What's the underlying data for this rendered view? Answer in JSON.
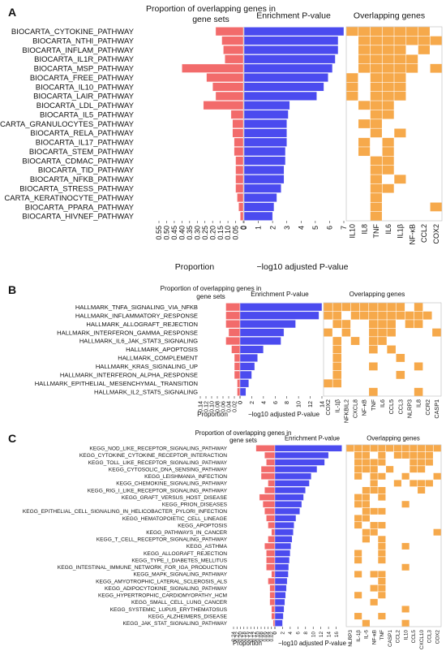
{
  "colors": {
    "proportion": "#f26b6b",
    "pvalue": "#4b4bef",
    "overlap": "#f6a94b"
  },
  "chart_data": [
    {
      "panel": "A",
      "type": "bar",
      "title_prop": "Proportion of overlapping genes in gene sets",
      "title_p": "Enrichment P-value",
      "title_genes": "Overlapping genes",
      "xlabel_prop": "Proportion",
      "xlabel_p": "−log10 adjusted P-value",
      "prop_ticks": [
        "0.55",
        "0.50",
        "0.45",
        "0.40",
        "0.35",
        "0.30",
        "0.25",
        "0.20",
        "0.15",
        "0.10",
        "0.05",
        "0"
      ],
      "prop_max": 0.55,
      "p_ticks": [
        "0",
        "1",
        "2",
        "3",
        "4",
        "5",
        "6",
        "7"
      ],
      "p_max": 7,
      "categories": [
        "BIOCARTA_CYTOKINE_PATHWAY",
        "BIOCARTA_NTHI_PATHWAY",
        "BIOCARTA_INFLAM_PATHWAY",
        "BIOCARTA_IL1R_PATHWAY",
        "BIOCARTA_MSP_PATHWAY",
        "BIOCARTA_FREE_PATHWAY",
        "BIOCARTA_IL10_PATHWAY",
        "BIOCARTA_LAIR_PATHWAY",
        "BIOCARTA_LDL_PATHWAY",
        "BIOCARTA_IL5_PATHWAY",
        "CARTA_GRANULOCYTES_PATHWAY",
        "BIOCARTA_RELA_PATHWAY",
        "BIOCARTA_IL17_PATHWAY",
        "BIOCARTA_STEM_PATHWAY",
        "BIOCARTA_CDMAC_PATHWAY",
        "BIOCARTA_TID_PATHWAY",
        "BIOCARTA_NFKB_PATHWAY",
        "BIOCARTA_STRESS_PATHWAY",
        "CARTA_KERATINOCYTE_PATHWAY",
        "BIOCARTA_PPARA_PATHWAY",
        "BIOCARTA_HIVNEF_PATHWAY"
      ],
      "proportion": [
        0.18,
        0.14,
        0.13,
        0.12,
        0.4,
        0.24,
        0.2,
        0.18,
        0.26,
        0.08,
        0.07,
        0.07,
        0.06,
        0.06,
        0.05,
        0.05,
        0.05,
        0.05,
        0.04,
        0.03,
        0.02
      ],
      "pvalue": [
        7.0,
        6.6,
        6.6,
        6.4,
        6.2,
        5.9,
        5.6,
        5.1,
        3.2,
        3.1,
        3.0,
        3.0,
        3.0,
        2.9,
        2.9,
        2.8,
        2.8,
        2.6,
        2.3,
        2.1,
        2.0
      ],
      "genes": [
        "IL10",
        "IL8",
        "TNF",
        "IL6",
        "IL1β",
        "NF-κB",
        "CCL2",
        "COX2"
      ],
      "overlap": [
        [
          1,
          1,
          1,
          1,
          1,
          1,
          1,
          0
        ],
        [
          0,
          1,
          1,
          1,
          1,
          1,
          1,
          1
        ],
        [
          0,
          1,
          1,
          1,
          1,
          0,
          1,
          0
        ],
        [
          0,
          1,
          1,
          1,
          1,
          1,
          0,
          0
        ],
        [
          0,
          1,
          1,
          1,
          1,
          1,
          0,
          1
        ],
        [
          1,
          0,
          1,
          1,
          1,
          0,
          0,
          0
        ],
        [
          1,
          0,
          1,
          1,
          1,
          0,
          0,
          0
        ],
        [
          1,
          0,
          1,
          1,
          1,
          0,
          0,
          0
        ],
        [
          0,
          1,
          1,
          1,
          0,
          0,
          0,
          0
        ],
        [
          0,
          0,
          1,
          1,
          0,
          0,
          0,
          0
        ],
        [
          0,
          1,
          1,
          0,
          0,
          0,
          0,
          0
        ],
        [
          0,
          0,
          1,
          0,
          1,
          0,
          0,
          0
        ],
        [
          0,
          1,
          0,
          1,
          0,
          0,
          0,
          0
        ],
        [
          0,
          1,
          0,
          1,
          0,
          0,
          0,
          0
        ],
        [
          0,
          0,
          1,
          1,
          0,
          0,
          0,
          0
        ],
        [
          0,
          0,
          1,
          1,
          0,
          0,
          0,
          0
        ],
        [
          0,
          0,
          1,
          0,
          1,
          0,
          0,
          0
        ],
        [
          0,
          0,
          1,
          1,
          0,
          0,
          0,
          0
        ],
        [
          0,
          0,
          1,
          0,
          0,
          0,
          0,
          0
        ],
        [
          0,
          0,
          1,
          0,
          0,
          0,
          0,
          1
        ],
        [
          0,
          0,
          1,
          0,
          0,
          0,
          0,
          0
        ]
      ]
    },
    {
      "panel": "B",
      "type": "bar",
      "title_prop": "Proportion of overlapping genes in gene sets",
      "title_p": "Enrichment P-value",
      "title_genes": "Overlapping genes",
      "xlabel_prop": "Proportion",
      "xlabel_p": "−log10 adjusted P-value",
      "prop_ticks": [
        "0.14",
        "0.12",
        "0.10",
        "0.08",
        "0.06",
        "0.04",
        "0.02",
        "0"
      ],
      "prop_max": 0.14,
      "p_ticks": [
        "0",
        "2",
        "4",
        "6",
        "8",
        "10",
        "12",
        "14"
      ],
      "p_max": 14,
      "categories": [
        "HALLMARK_TNFA_SIGNALING_VIA_NFKB",
        "HALLMARK_INFLAMMATORY_RESPONSE",
        "HALLMARK_ALLOGRAFT_REJECTION",
        "HALLMARK_INTERFERON_GAMMA_RESPONSE",
        "HALLMARK_IL6_JAK_STAT3_SIGNALING",
        "HALLMARK_APOPTOSIS",
        "HALLMARK_COMPLEMENT",
        "HALLMARK_KRAS_SIGNALING_UP",
        "HALLMARK_INTERFERON_ALPHA_RESPONSE",
        "HALLMARK_EPITHELIAL_MESENCHYMAL_TRANSITION",
        "HALLMARK_IL2_STAT5_SIGNALING"
      ],
      "proportion": [
        0.05,
        0.05,
        0.05,
        0.04,
        0.05,
        0.03,
        0.02,
        0.02,
        0.02,
        0.01,
        0.01
      ],
      "pvalue": [
        14.0,
        13.5,
        9.5,
        7.5,
        7.0,
        4.0,
        3.0,
        2.5,
        2.0,
        1.5,
        1.0
      ],
      "genes": [
        "COX2",
        "IL-1β",
        "NFKBIL2",
        "CXCL8",
        "NF-κB",
        "TNF",
        "IL6",
        "CCL5",
        "CCL3",
        "NLRP3",
        "IL8",
        "CCR2",
        "CASP1"
      ],
      "overlap": [
        [
          1,
          1,
          1,
          1,
          1,
          1,
          1,
          1,
          1,
          0,
          1,
          0,
          0
        ],
        [
          1,
          1,
          0,
          1,
          1,
          1,
          1,
          1,
          1,
          1,
          1,
          1,
          0
        ],
        [
          0,
          1,
          1,
          0,
          0,
          1,
          1,
          1,
          0,
          1,
          1,
          0,
          0
        ],
        [
          1,
          0,
          1,
          0,
          0,
          1,
          1,
          1,
          0,
          0,
          0,
          0,
          1
        ],
        [
          0,
          1,
          0,
          1,
          0,
          1,
          1,
          0,
          0,
          0,
          0,
          0,
          0
        ],
        [
          0,
          1,
          0,
          0,
          0,
          1,
          0,
          1,
          0,
          0,
          0,
          0,
          0
        ],
        [
          0,
          1,
          0,
          0,
          0,
          0,
          0,
          0,
          1,
          0,
          0,
          0,
          0
        ],
        [
          0,
          1,
          0,
          0,
          0,
          1,
          0,
          0,
          0,
          0,
          1,
          0,
          0
        ],
        [
          0,
          1,
          0,
          0,
          0,
          0,
          0,
          0,
          1,
          0,
          0,
          0,
          0
        ],
        [
          1,
          1,
          0,
          0,
          0,
          0,
          0,
          0,
          0,
          0,
          0,
          0,
          0
        ],
        [
          0,
          0,
          0,
          0,
          0,
          1,
          0,
          0,
          0,
          0,
          1,
          0,
          0
        ]
      ]
    },
    {
      "panel": "C",
      "type": "bar",
      "title_prop": "Proportion of overlapping genes in gene sets",
      "title_p": "Enrichment P-value",
      "title_genes": "Overlapping genes",
      "xlabel_prop": "Proportion",
      "xlabel_p": "−log10 adjusted P-value",
      "prop_ticks": [
        "0.24",
        "0.22",
        "0.20",
        "0.18",
        "0.16",
        "0.14",
        "0.12",
        "0.10",
        "0.08",
        "0.06",
        "0.04",
        "0.02",
        "0"
      ],
      "prop_max": 0.24,
      "p_ticks": [
        "0",
        "2",
        "4",
        "6",
        "8",
        "10",
        "12",
        "14",
        "16"
      ],
      "p_max": 18,
      "categories": [
        "KEGG_NOD_LIKE_RECEPTOR_SIGNALING_PATHWAY",
        "KEGG_CYTOKINE_CYTOKINE_RECEPTOR_INTERACTION",
        "KEGG_TOLL_LIKE_RECEPTOR_SIGNALING_PATHWAY",
        "KEGG_CYTOSOLIC_DNA_SENSING_PATHWAY",
        "KEGG_LEISHMANIA_INFECTION",
        "KEGG_CHEMOKINE_SIGNALING_PATHWAY",
        "KEGG_RIG_I_LIKE_RECEPTOR_SIGNALING_PATHWAY",
        "KEGG_GRAFT_VERSUS_HOST_DISEASE",
        "KEGG_PRION_DISEASES",
        "KEGG_EPITHELIAL_CELL_SIGNALING_IN_HELICOBACTER_PYLORI_INFECTION",
        "KEGG_HEMATOPOIETIC_CELL_LINEAGE",
        "KEGG_APOPTOSIS",
        "KEGG_PATHWAYS_IN_CANCER",
        "KEGG_T_CELL_RECEPTOR_SIGNALING_PATHWAY",
        "KEGG_ASTHMA",
        "KEGG_ALLOGRAFT_REJECTION",
        "KEGG_TYPE_I_DIABETES_MELLITUS",
        "KEGG_INTESTINAL_IMMUNE_NETWORK_FOR_IGA_PRODUCTION",
        "KEGG_MAPK_SIGNALING_PATHWAY",
        "KEGG_AMYOTROPHIC_LATERAL_SCLEROSIS_ALS",
        "KEGG_ADIPOCYTOKINE_SIGNALING_PATHWAY",
        "KEGG_HYPERTROPHIC_CARDIOMYOPATHY_HCM",
        "KEGG_SMALL_CELL_LUNG_CANCER",
        "KEGG_SYSTEMIC_LUPUS_ERYTHEMATOSUS",
        "KEGG_ALZHEIMERS_DISEASE",
        "KEGG_JAK_STAT_SIGNALING_PATHWAY"
      ],
      "proportion": [
        0.11,
        0.06,
        0.05,
        0.08,
        0.08,
        0.04,
        0.06,
        0.09,
        0.07,
        0.06,
        0.05,
        0.04,
        0.02,
        0.04,
        0.06,
        0.05,
        0.05,
        0.05,
        0.02,
        0.04,
        0.03,
        0.03,
        0.03,
        0.02,
        0.02,
        0.01
      ],
      "pvalue": [
        17.5,
        14.0,
        13.0,
        11.0,
        9.5,
        9.0,
        8.0,
        7.5,
        7.0,
        6.5,
        5.5,
        5.0,
        4.8,
        4.5,
        4.2,
        4.0,
        3.8,
        3.6,
        3.5,
        3.2,
        3.0,
        2.8,
        2.6,
        2.4,
        2.2,
        2.0
      ],
      "genes": [
        "NLRP3",
        "IL-1β",
        "IL-6",
        "NF-κB",
        "TNF",
        "CASP1",
        "CCL2",
        "IL10",
        "CCL5",
        "CXCL10",
        "CCL3",
        "COX2"
      ],
      "overlap": [
        [
          1,
          1,
          1,
          1,
          1,
          1,
          1,
          1,
          1,
          1,
          1,
          1
        ],
        [
          0,
          1,
          1,
          0,
          1,
          0,
          1,
          1,
          1,
          1,
          1,
          0
        ],
        [
          0,
          1,
          1,
          1,
          1,
          0,
          0,
          0,
          1,
          1,
          1,
          0
        ],
        [
          0,
          1,
          1,
          1,
          0,
          1,
          0,
          0,
          1,
          1,
          0,
          0
        ],
        [
          0,
          1,
          0,
          1,
          1,
          0,
          0,
          1,
          0,
          0,
          0,
          1
        ],
        [
          0,
          0,
          0,
          1,
          0,
          0,
          1,
          0,
          1,
          1,
          1,
          0
        ],
        [
          0,
          0,
          1,
          1,
          1,
          0,
          0,
          0,
          0,
          1,
          0,
          0
        ],
        [
          0,
          1,
          1,
          0,
          1,
          0,
          0,
          0,
          0,
          0,
          0,
          0
        ],
        [
          0,
          1,
          1,
          0,
          0,
          0,
          0,
          1,
          0,
          0,
          0,
          0
        ],
        [
          0,
          0,
          1,
          1,
          1,
          0,
          0,
          0,
          0,
          0,
          0,
          0
        ],
        [
          0,
          1,
          1,
          0,
          0,
          0,
          0,
          0,
          0,
          0,
          0,
          0
        ],
        [
          0,
          1,
          0,
          1,
          1,
          0,
          0,
          0,
          0,
          0,
          0,
          0
        ],
        [
          0,
          0,
          1,
          1,
          0,
          0,
          0,
          0,
          0,
          0,
          0,
          1
        ],
        [
          0,
          0,
          1,
          0,
          1,
          0,
          0,
          0,
          0,
          0,
          0,
          0
        ],
        [
          0,
          0,
          0,
          0,
          1,
          0,
          0,
          1,
          0,
          0,
          0,
          0
        ],
        [
          0,
          1,
          0,
          0,
          1,
          0,
          0,
          0,
          0,
          0,
          0,
          0
        ],
        [
          0,
          1,
          0,
          0,
          1,
          0,
          0,
          0,
          0,
          0,
          0,
          0
        ],
        [
          0,
          0,
          0,
          0,
          0,
          0,
          0,
          1,
          0,
          0,
          0,
          0
        ],
        [
          0,
          1,
          0,
          1,
          1,
          0,
          0,
          0,
          0,
          0,
          0,
          0
        ],
        [
          0,
          0,
          0,
          0,
          1,
          0,
          0,
          0,
          0,
          0,
          0,
          0
        ],
        [
          0,
          0,
          0,
          1,
          1,
          0,
          0,
          0,
          0,
          0,
          0,
          0
        ],
        [
          0,
          1,
          0,
          0,
          1,
          0,
          0,
          0,
          0,
          0,
          0,
          0
        ],
        [
          0,
          0,
          0,
          1,
          0,
          0,
          0,
          0,
          0,
          0,
          0,
          0
        ],
        [
          0,
          0,
          0,
          0,
          0,
          0,
          0,
          1,
          0,
          0,
          0,
          0
        ],
        [
          0,
          1,
          0,
          0,
          1,
          0,
          0,
          0,
          0,
          0,
          0,
          0
        ],
        [
          0,
          0,
          1,
          0,
          0,
          0,
          0,
          1,
          0,
          0,
          0,
          0
        ]
      ]
    }
  ]
}
